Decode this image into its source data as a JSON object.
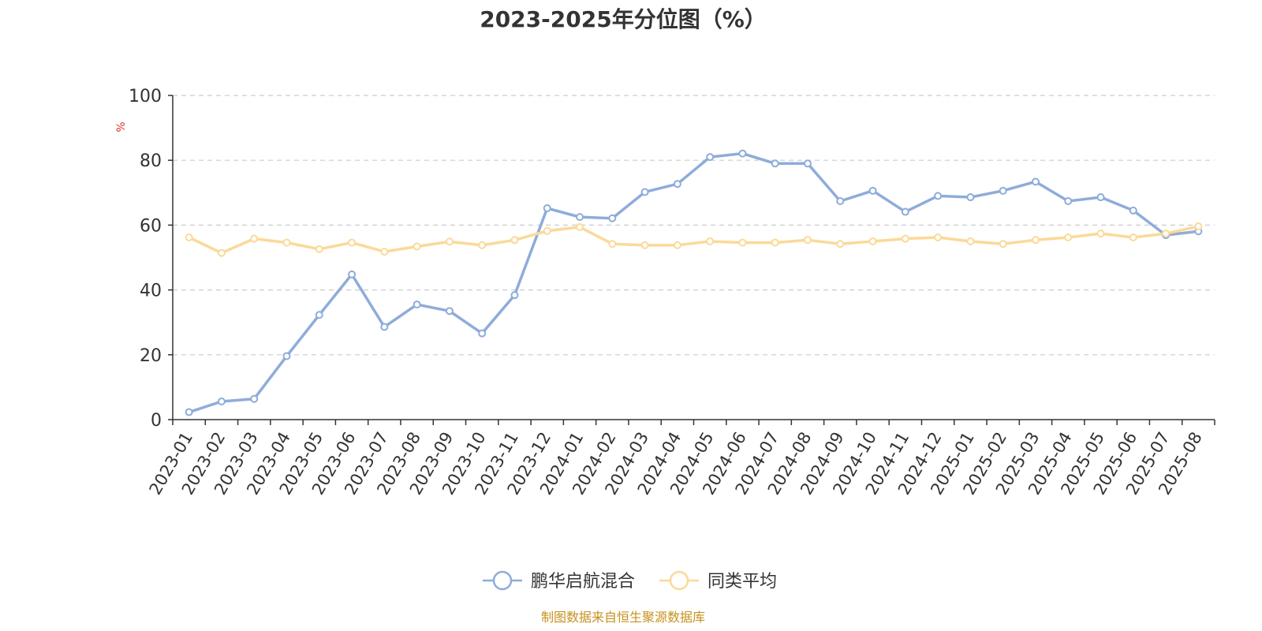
{
  "chart_data": {
    "type": "line",
    "title": "2023-2025年分位图（%）",
    "ylabel": "%",
    "xlabel": "",
    "ylim": [
      0,
      100
    ],
    "yticks": [
      0,
      20,
      40,
      60,
      80,
      100
    ],
    "grid": "horizontal-dashed",
    "legend_placement": "bottom-center",
    "categories": [
      "2023-01",
      "2023-02",
      "2023-03",
      "2023-04",
      "2023-05",
      "2023-06",
      "2023-07",
      "2023-08",
      "2023-09",
      "2023-10",
      "2023-11",
      "2023-12",
      "2024-01",
      "2024-02",
      "2024-03",
      "2024-04",
      "2024-05",
      "2024-06",
      "2024-07",
      "2024-08",
      "2024-09",
      "2024-10",
      "2024-11",
      "2024-12",
      "2025-01",
      "2025-02",
      "2025-03",
      "2025-04",
      "2025-05",
      "2025-06",
      "2025-07",
      "2025-08"
    ],
    "series": [
      {
        "name": "鹏华启航混合",
        "color": "#8eacda",
        "values": [
          2.3,
          5.6,
          6.4,
          19.6,
          32.3,
          44.8,
          28.6,
          35.5,
          33.5,
          26.6,
          38.4,
          65.2,
          62.5,
          62.1,
          70.2,
          72.7,
          81.0,
          82.1,
          79.0,
          79.0,
          67.4,
          70.6,
          64.1,
          69.0,
          68.6,
          70.6,
          73.4,
          67.4,
          68.6,
          64.5,
          56.9,
          58.1
        ]
      },
      {
        "name": "同类平均",
        "color": "#fbd998",
        "values": [
          56.2,
          51.4,
          55.8,
          54.6,
          52.6,
          54.6,
          51.8,
          53.4,
          54.9,
          53.8,
          55.4,
          58.2,
          59.4,
          54.2,
          53.8,
          53.8,
          55.0,
          54.6,
          54.6,
          55.4,
          54.2,
          55.0,
          55.8,
          56.2,
          55.0,
          54.2,
          55.4,
          56.2,
          57.4,
          56.2,
          57.4,
          59.6
        ]
      }
    ],
    "source_note": "制图数据来自恒生聚源数据库",
    "colors": {
      "ylabel": "#e0302a",
      "source": "#c8901e",
      "axis": "#333333",
      "grid": "#cccccc",
      "title": "#333333"
    }
  }
}
